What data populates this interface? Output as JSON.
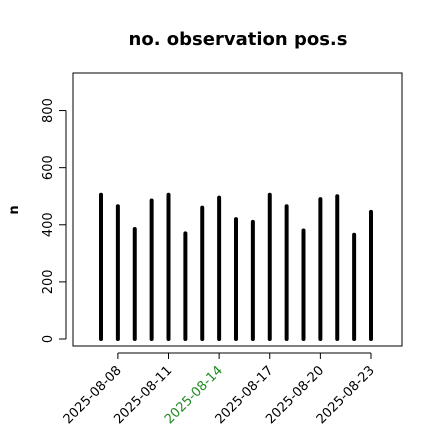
{
  "chart_data": {
    "type": "bar",
    "style": "histogram-spikes",
    "title": "no. observation pos.s",
    "xlabel": "",
    "ylabel": "n",
    "ylim": [
      0,
      900
    ],
    "yticks": [
      0,
      200,
      400,
      600,
      800
    ],
    "dates": [
      "2025-08-07",
      "2025-08-08",
      "2025-08-09",
      "2025-08-10",
      "2025-08-11",
      "2025-08-12",
      "2025-08-13",
      "2025-08-14",
      "2025-08-15",
      "2025-08-16",
      "2025-08-17",
      "2025-08-18",
      "2025-08-19",
      "2025-08-20",
      "2025-08-21",
      "2025-08-22",
      "2025-08-23"
    ],
    "values": [
      505,
      465,
      385,
      485,
      505,
      370,
      460,
      495,
      420,
      410,
      505,
      465,
      380,
      490,
      500,
      365,
      445
    ],
    "x_tick_labels": [
      {
        "date": "2025-08-08",
        "label": "2025-08-08",
        "color": "#000000"
      },
      {
        "date": "2025-08-11",
        "label": "2025-08-11",
        "color": "#000000"
      },
      {
        "date": "2025-08-14",
        "label": "2025-08-14",
        "color": "#228b22"
      },
      {
        "date": "2025-08-17",
        "label": "2025-08-17",
        "color": "#000000"
      },
      {
        "date": "2025-08-20",
        "label": "2025-08-20",
        "color": "#000000"
      },
      {
        "date": "2025-08-23",
        "label": "2025-08-23",
        "color": "#000000"
      }
    ],
    "bar_color": "#000000",
    "grid": false,
    "legend": "none"
  }
}
